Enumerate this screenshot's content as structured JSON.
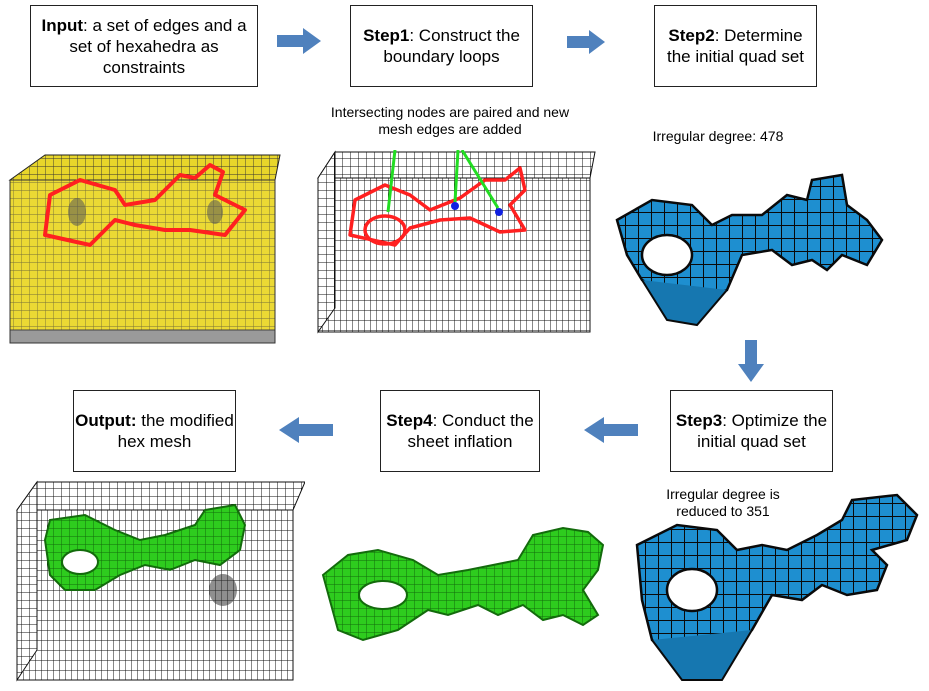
{
  "steps": {
    "input": {
      "bold": "Input",
      "rest": ": a set of edges and a set of hexahedra as constraints"
    },
    "step1": {
      "bold": "Step1",
      "rest": ": Construct the boundary loops"
    },
    "step2": {
      "bold": "Step2",
      "rest": ": Determine the initial quad set"
    },
    "step3": {
      "bold": "Step3",
      "rest": ": Optimize the initial quad set"
    },
    "step4": {
      "bold": "Step4",
      "rest": ": Conduct the sheet inflation"
    },
    "output": {
      "bold": "Output:",
      "rest": " the modified hex mesh"
    }
  },
  "annotations": {
    "intersect": "Intersecting nodes are paired and new mesh edges are added",
    "irregular_initial": "Irregular degree: 478",
    "irregular_reduced": "Irregular degree is reduced to 351"
  },
  "colors": {
    "arrow": "#4f81bd",
    "boundary_loop": "#ff2020",
    "pointer_green": "#22dd22",
    "node_blue": "#1020e0",
    "quad_blue": "#1e8fd0",
    "sheet_green": "#2ecc1e",
    "block_yellow": "#e8d62a"
  }
}
